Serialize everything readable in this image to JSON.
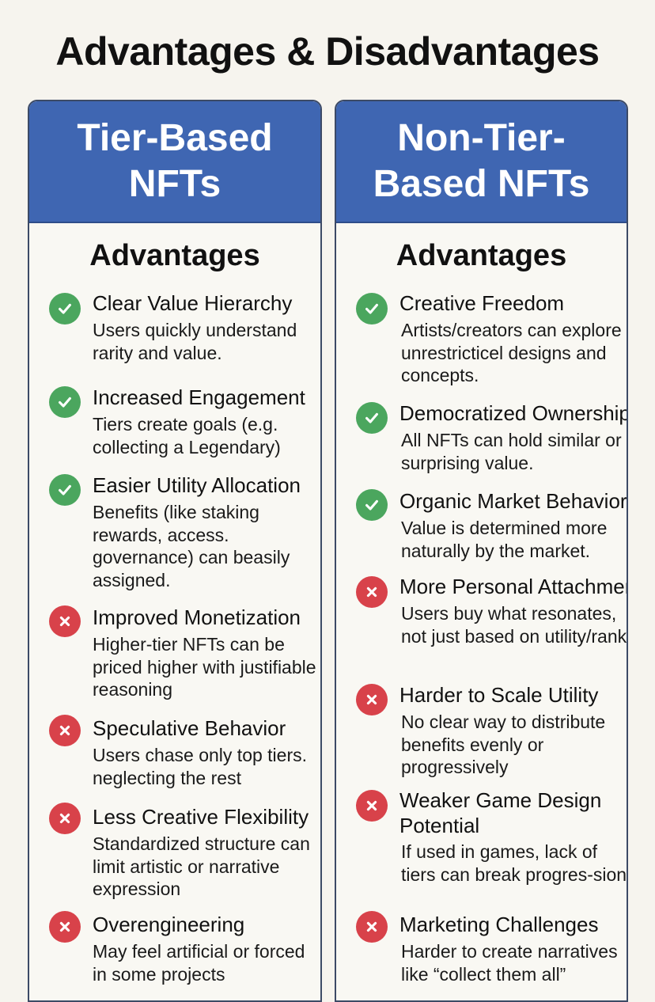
{
  "page": {
    "title": "Advantages & Disadvantages"
  },
  "colors": {
    "header_blue": "#3f66b2",
    "check_green": "#4ba65e",
    "cross_red": "#d8424a"
  },
  "left": {
    "title": "Tier-Based NFTs",
    "section": "Advantages",
    "items": [
      {
        "icon": "check-icon",
        "title": "Clear Value Hierarchy",
        "desc": "Users quickly understand rarity and value."
      },
      {
        "icon": "check-icon",
        "title": "Increased Engagement",
        "desc": "Tiers create goals (e.g. collecting a Legendary)"
      },
      {
        "icon": "check-icon",
        "title": "Easier Utility Allocation",
        "desc": "Benefits (like staking rewards, access. governance) can beasily assigned."
      },
      {
        "icon": "cross-icon",
        "title": "Improved Monetization",
        "desc": "Higher-tier NFTs can be priced higher with justifiable reasoning"
      },
      {
        "icon": "cross-icon",
        "title": "Speculative Behavior",
        "desc": "Users chase only top tiers. neglecting the rest"
      },
      {
        "icon": "cross-icon",
        "title": "Less Creative Flexibility",
        "desc": "Standardized structure can limit artistic or narrative expression"
      },
      {
        "icon": "cross-icon",
        "title": "Overengineering",
        "desc": "May feel artificial or forced in some projects"
      }
    ]
  },
  "right": {
    "title": "Non-Tier-Based NFTs",
    "section": "Advantages",
    "items": [
      {
        "icon": "check-icon",
        "title": "Creative Freedom",
        "desc": "Artists/creators can explore unrestricticel designs and concepts."
      },
      {
        "icon": "check-icon",
        "title": "Democratized Ownership",
        "desc": "All NFTs can hold similar or surprising value."
      },
      {
        "icon": "check-icon",
        "title": "Organic Market Behavior",
        "desc": "Value is determined more naturally by the market."
      },
      {
        "icon": "cross-icon",
        "title": "More Personal Attachment",
        "desc": "Users buy what resonates, not just based on utility/rank"
      },
      {
        "icon": "cross-icon",
        "title": "Harder to Scale Utility",
        "desc": "No clear way to distribute benefits evenly or progressively"
      },
      {
        "icon": "cross-icon",
        "title": "Weaker Game Design Potential",
        "desc": "If used in games, lack of tiers can break progres-sion"
      },
      {
        "icon": "cross-icon",
        "title": "Marketing Challenges",
        "desc": "Harder to create narratives like “collect them all”"
      }
    ]
  }
}
